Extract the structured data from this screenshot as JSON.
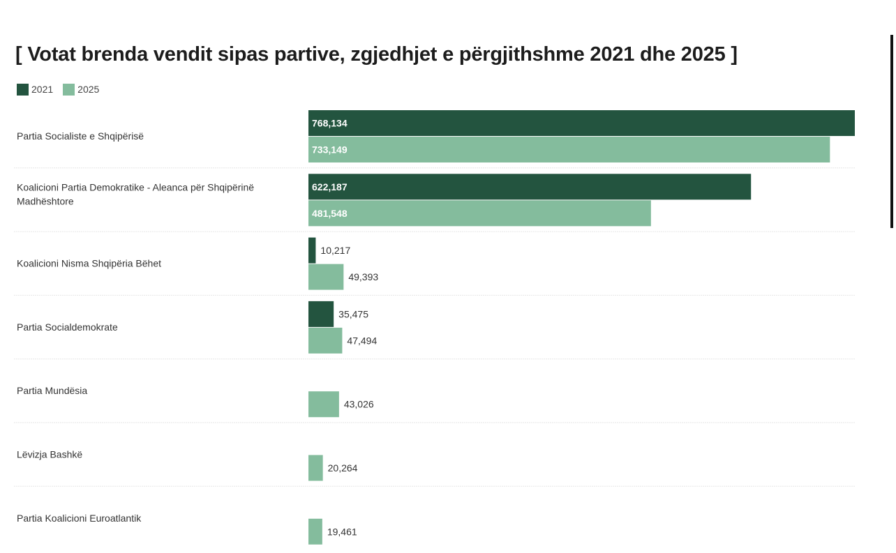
{
  "chart_data": {
    "type": "bar",
    "orientation": "horizontal",
    "title": "[ Votat brenda vendit sipas partive, zgjedhjet e përgjithshme 2021 dhe 2025 ]",
    "xlim": [
      0,
      768134
    ],
    "grid": false,
    "legend_position": "top-left",
    "categories": [
      "Partia Socialiste e Shqipërisë",
      "Koalicioni Partia Demokratike - Aleanca për Shqipërinë Madhështore",
      "Koalicioni Nisma Shqipëria Bëhet",
      "Partia Socialdemokrate",
      "Partia Mundësia",
      "Lëvizja Bashkë",
      "Partia Koalicioni Euroatlantik"
    ],
    "series": [
      {
        "name": "2021",
        "color": "#23543f",
        "values": [
          768134,
          622187,
          10217,
          35475,
          null,
          null,
          null
        ],
        "labels": [
          "768,134",
          "622,187",
          "10,217",
          "35,475",
          "",
          "",
          ""
        ]
      },
      {
        "name": "2025",
        "color": "#84bc9d",
        "values": [
          733149,
          481548,
          49393,
          47494,
          43026,
          20264,
          19461
        ],
        "labels": [
          "733,149",
          "481,548",
          "49,393",
          "47,494",
          "43,026",
          "20,264",
          "19,461"
        ]
      }
    ]
  }
}
